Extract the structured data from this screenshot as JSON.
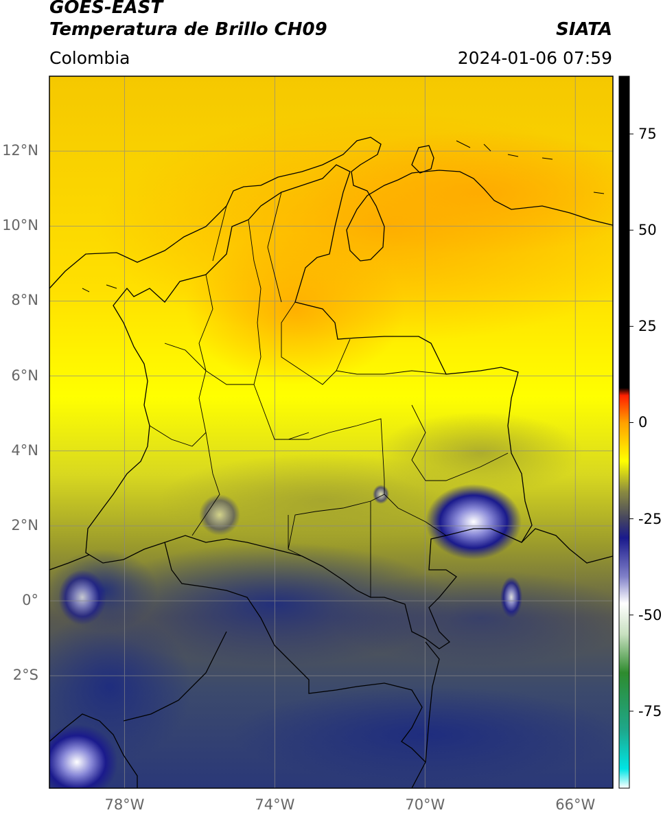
{
  "header": {
    "satellite": "GOES-EAST",
    "product": "Temperatura de Brillo CH09",
    "organization": "SIATA",
    "region": "Colombia",
    "timestamp": "2024-01-06 07:59"
  },
  "map": {
    "lat_ticks": [
      "12°N",
      "10°N",
      "8°N",
      "6°N",
      "4°N",
      "2°N",
      "0°",
      "2°S"
    ],
    "lon_ticks": [
      "78°W",
      "74°W",
      "70°W",
      "66°W"
    ],
    "lat_values": [
      12,
      10,
      8,
      6,
      4,
      2,
      0,
      -2
    ],
    "lon_values": [
      -78,
      -74,
      -70,
      -66
    ],
    "lon_range": [
      -80,
      -65
    ],
    "lat_range": [
      -5,
      14
    ],
    "palette": {
      "warm_band": "#ffc400",
      "yellow": "#ffff00",
      "olive": "#9a9a2c",
      "slate": "#3c4a6c",
      "navy": "#1c2a78",
      "cold_white": "#e6e8ff",
      "border": "#000000",
      "grid": "#888888"
    }
  },
  "colorbar": {
    "ticks": [
      "75",
      "50",
      "25",
      "0",
      "-25",
      "-50",
      "-75"
    ],
    "tick_values": [
      75,
      50,
      25,
      0,
      -25,
      -50,
      -75
    ],
    "range": [
      -95,
      90
    ],
    "stops": [
      {
        "v": -95,
        "c": "#ffffff"
      },
      {
        "v": -90,
        "c": "#00e5e5"
      },
      {
        "v": -80,
        "c": "#1ea88c"
      },
      {
        "v": -65,
        "c": "#2e8b2e"
      },
      {
        "v": -55,
        "c": "#c8e0c0"
      },
      {
        "v": -47,
        "c": "#ffffff"
      },
      {
        "v": -40,
        "c": "#8080c8"
      },
      {
        "v": -30,
        "c": "#1a1a8c"
      },
      {
        "v": -25,
        "c": "#454560"
      },
      {
        "v": -18,
        "c": "#8a8a40"
      },
      {
        "v": -10,
        "c": "#ffff00"
      },
      {
        "v": 0,
        "c": "#ffa000"
      },
      {
        "v": 7,
        "c": "#ff2000"
      },
      {
        "v": 9,
        "c": "#000000"
      },
      {
        "v": 90,
        "c": "#000000"
      }
    ]
  }
}
